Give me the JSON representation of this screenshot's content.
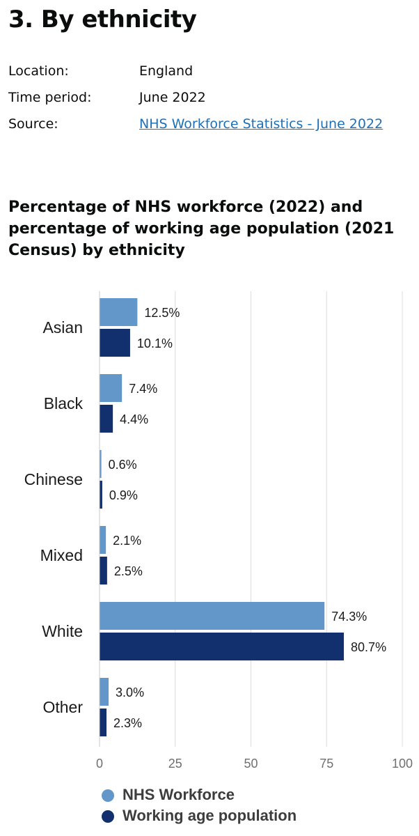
{
  "page": {
    "title": "3. By ethnicity",
    "meta": [
      {
        "key": "Location:",
        "value": "England"
      },
      {
        "key": "Time period:",
        "value": "June 2022"
      },
      {
        "key": "Source:",
        "value": "NHS Workforce Statistics - June 2022",
        "link": true
      }
    ]
  },
  "chart_data": {
    "type": "bar",
    "orientation": "horizontal",
    "title": "Percentage of NHS workforce (2022) and percentage of working age population (2021 Census) by ethnicity",
    "categories": [
      "Asian",
      "Black",
      "Chinese",
      "Mixed",
      "White",
      "Other"
    ],
    "series": [
      {
        "name": "NHS Workforce",
        "color": "#6396c9",
        "values": [
          12.5,
          7.4,
          0.6,
          2.1,
          74.3,
          3.0
        ],
        "labels": [
          "12.5%",
          "7.4%",
          "0.6%",
          "2.1%",
          "74.3%",
          "3.0%"
        ]
      },
      {
        "name": "Working age population",
        "color": "#12306e",
        "values": [
          10.1,
          4.4,
          0.9,
          2.5,
          80.7,
          2.3
        ],
        "labels": [
          "10.1%",
          "4.4%",
          "0.9%",
          "2.5%",
          "80.7%",
          "2.3%"
        ]
      }
    ],
    "xlim": [
      0,
      100
    ],
    "xticks": [
      "0",
      "25",
      "50",
      "75",
      "100"
    ],
    "grid": true,
    "legend_position": "bottom"
  }
}
